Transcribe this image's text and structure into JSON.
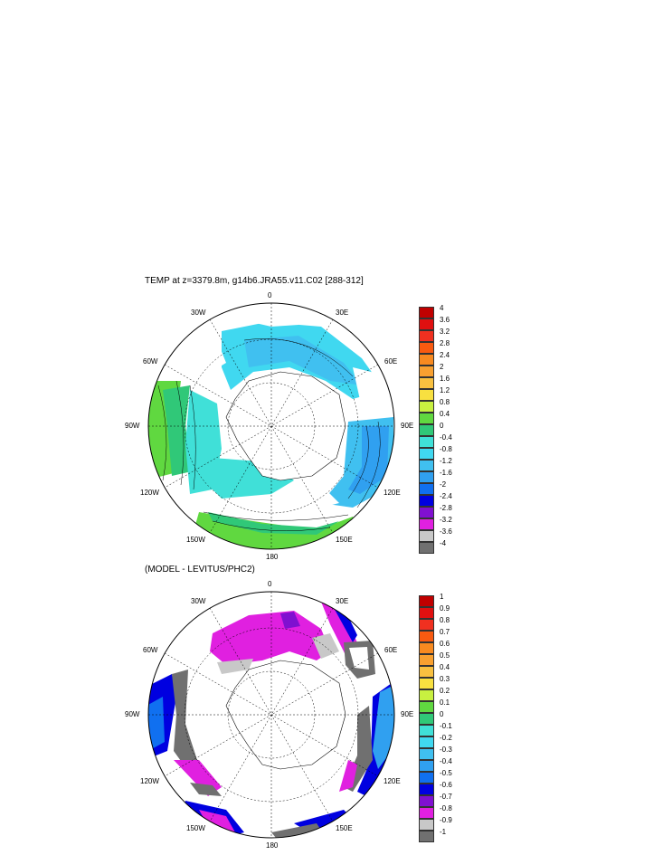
{
  "panel1": {
    "title": "TEMP at z=3379.8m, g14b6.JRA55.v11.C02 [288-312]",
    "lon_labels": {
      "top": "0",
      "ne": "30E",
      "nw": "30W",
      "e_upper": "60E",
      "w_upper": "60W",
      "e": "90E",
      "w": "90W",
      "e_lower": "120E",
      "w_lower": "120W",
      "se": "150E",
      "sw": "150W",
      "bottom": "180"
    },
    "colorbar": {
      "labels": [
        "4",
        "3.6",
        "3.2",
        "2.8",
        "2.4",
        "2",
        "1.6",
        "1.2",
        "0.8",
        "0.4",
        "0",
        "-0.4",
        "-0.8",
        "-1.2",
        "-1.6",
        "-2",
        "-2.4",
        "-2.8",
        "-3.2",
        "-3.6",
        "-4"
      ],
      "colors": [
        "#c00000",
        "#e01010",
        "#f03020",
        "#f85a10",
        "#f88a20",
        "#f8a030",
        "#f8c040",
        "#f8e040",
        "#c8f040",
        "#60d840",
        "#30c878",
        "#40e0d8",
        "#40d8f0",
        "#40c0f0",
        "#30a0f0",
        "#1070f0",
        "#0000e0",
        "#8010d0",
        "#e020e0",
        "#c8c8c8",
        "#707070"
      ]
    }
  },
  "panel2": {
    "title": "(MODEL - LEVITUS/PHC2)",
    "lon_labels": {
      "top": "0",
      "ne": "30E",
      "nw": "30W",
      "e_upper": "60E",
      "w_upper": "60W",
      "e": "90E",
      "w": "90W",
      "e_lower": "120E",
      "w_lower": "120W",
      "se": "150E",
      "sw": "150W",
      "bottom": "180"
    },
    "colorbar": {
      "labels": [
        "1",
        "0.9",
        "0.8",
        "0.7",
        "0.6",
        "0.5",
        "0.4",
        "0.3",
        "0.2",
        "0.1",
        "0",
        "-0.1",
        "-0.2",
        "-0.3",
        "-0.4",
        "-0.5",
        "-0.6",
        "-0.7",
        "-0.8",
        "-0.9",
        "-1"
      ],
      "colors": [
        "#c00000",
        "#e01010",
        "#f03020",
        "#f85a10",
        "#f88a20",
        "#f8a030",
        "#f8c040",
        "#f8e040",
        "#c8f040",
        "#60d840",
        "#30c878",
        "#40e0d8",
        "#40d8f0",
        "#40c0f0",
        "#30a0f0",
        "#1070f0",
        "#0000e0",
        "#8010d0",
        "#e020e0",
        "#c8c8c8",
        "#707070"
      ]
    }
  }
}
